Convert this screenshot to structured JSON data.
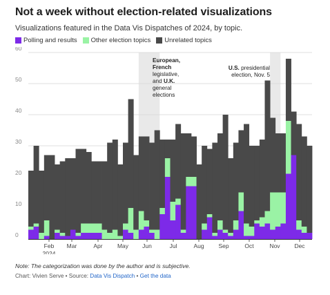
{
  "title": "Not a week without election-related visualizations",
  "subtitle": "Visualizations featured in the Data Vis Dispatches of 2024, by topic.",
  "legend": [
    {
      "label": "Polling and results",
      "color": "#7d2ae8"
    },
    {
      "label": "Other election topics",
      "color": "#9af3a5"
    },
    {
      "label": "Unrelated topics",
      "color": "#494949"
    }
  ],
  "note": "Note: The categorization was done by the author and is subjective.",
  "credit": {
    "prefix": "Chart: Vivien Serve • Source: ",
    "source_link": "Data Vis Dispatch",
    "separator": " • ",
    "data_link": "Get the data"
  },
  "annotations": {
    "europe": {
      "lines": [
        [
          {
            "t": "European,",
            "b": true
          }
        ],
        [
          {
            "t": "French",
            "b": true
          }
        ],
        [
          {
            "t": "legislative,",
            "b": false
          }
        ],
        [
          {
            "t": "and ",
            "b": false
          },
          {
            "t": "U.K.",
            "b": true
          }
        ],
        [
          {
            "t": "general",
            "b": false
          }
        ],
        [
          {
            "t": "elections",
            "b": false
          }
        ]
      ]
    },
    "us": {
      "lines": [
        [
          {
            "t": "U.S.",
            "b": true
          },
          {
            "t": " presidential",
            "b": false
          }
        ],
        [
          {
            "t": "election, Nov. 5",
            "b": false
          }
        ]
      ]
    }
  },
  "chart_data": {
    "type": "bar",
    "stacked": true,
    "x_tick_labels": [
      "Feb",
      "Mar",
      "Apr",
      "May",
      "Jun",
      "Jul",
      "Aug",
      "Sep",
      "Oct",
      "Nov",
      "Dec"
    ],
    "x_year_label": "2024",
    "ylim": [
      0,
      60
    ],
    "yticks": [
      0,
      10,
      20,
      30,
      40,
      50,
      60
    ],
    "grid": true,
    "highlight_ranges": [
      [
        21,
        24
      ],
      [
        46,
        47
      ]
    ],
    "series": [
      {
        "name": "Polling and results",
        "values": [
          3,
          4,
          0,
          1,
          0,
          2,
          1,
          1,
          3,
          1,
          2,
          2,
          2,
          2,
          0,
          0,
          0,
          0,
          3,
          2,
          0,
          3,
          4,
          2,
          0,
          8,
          20,
          6,
          11,
          2,
          17,
          17,
          0,
          3,
          7,
          1,
          3,
          2,
          1,
          3,
          9,
          1,
          1,
          5,
          4,
          5,
          3,
          4,
          5,
          21,
          27,
          3,
          2,
          2
        ]
      },
      {
        "name": "Other election topics",
        "values": [
          1,
          1,
          2,
          5,
          0,
          1,
          1,
          0,
          0,
          1,
          3,
          3,
          3,
          3,
          3,
          2,
          3,
          1,
          2,
          8,
          3,
          6,
          2,
          1,
          3,
          2,
          6,
          6,
          2,
          1,
          3,
          3,
          0,
          2,
          1,
          1,
          3,
          1,
          1,
          3,
          6,
          4,
          3,
          1,
          3,
          4,
          12,
          11,
          10,
          17,
          0,
          3,
          2,
          0
        ]
      },
      {
        "name": "Unrelated topics",
        "values": [
          18,
          25,
          20,
          21,
          27,
          21,
          23,
          25,
          23,
          27,
          24,
          23,
          20,
          20,
          22,
          29,
          29,
          23,
          26,
          35,
          24,
          24,
          27,
          28,
          32,
          22,
          6,
          20,
          24,
          31,
          14,
          13,
          24,
          25,
          21,
          29,
          28,
          37,
          24,
          25,
          20,
          32,
          26,
          24,
          25,
          42,
          24,
          19,
          19,
          20,
          14,
          31,
          29,
          28
        ]
      }
    ]
  }
}
